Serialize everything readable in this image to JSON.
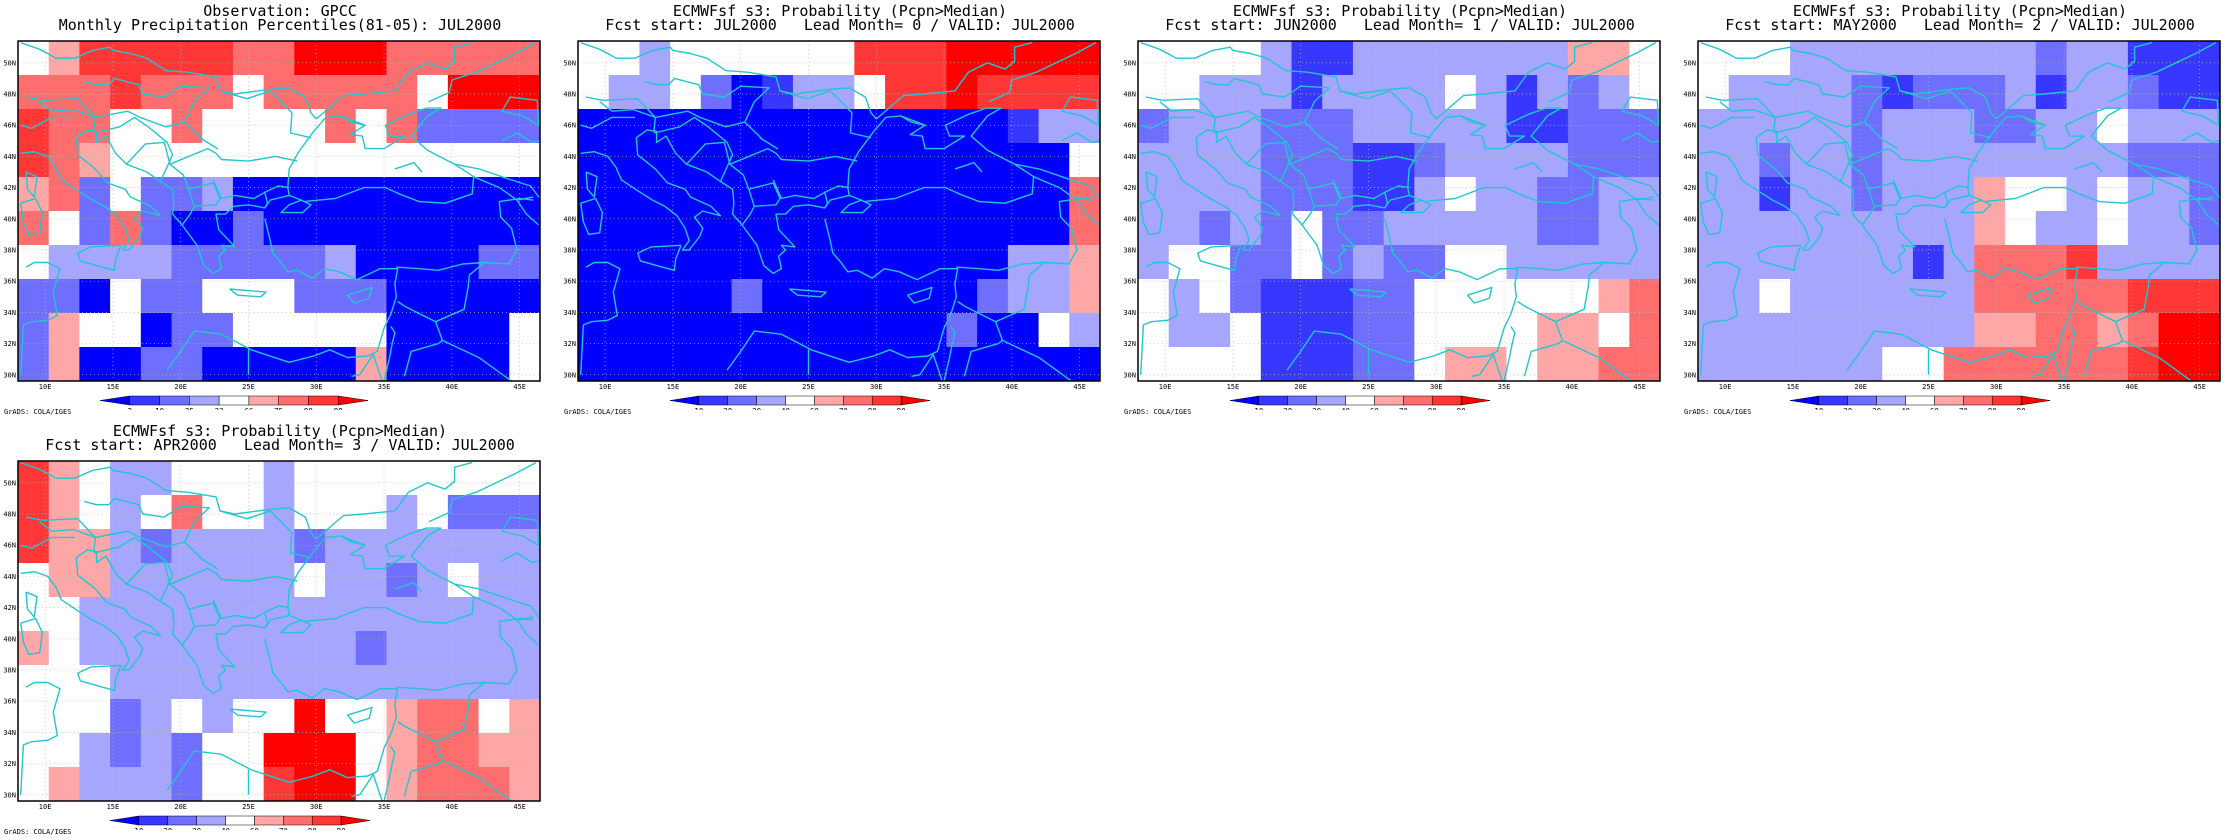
{
  "figure": {
    "panels": [
      {
        "title_line1": "Observation: GPCC",
        "title_line2": "Monthly Precipitation Percentiles(81-05): JUL2000",
        "colorbar_labels": [
          "2",
          "10",
          "25",
          "33",
          "66",
          "75",
          "90",
          "98"
        ]
      },
      {
        "title_line1": "ECMWFsf s3: Probability (Pcpn>Median)",
        "title_line2": "Fcst start: JUL2000   Lead Month= 0 / VALID: JUL2000",
        "colorbar_labels": [
          "10",
          "20",
          "30",
          "40",
          "60",
          "70",
          "80",
          "90"
        ]
      },
      {
        "title_line1": "ECMWFsf s3: Probability (Pcpn>Median)",
        "title_line2": "Fcst start: JUN2000   Lead Month= 1 / VALID: JUL2000",
        "colorbar_labels": [
          "10",
          "20",
          "30",
          "40",
          "60",
          "70",
          "80",
          "90"
        ]
      },
      {
        "title_line1": "ECMWFsf s3: Probability (Pcpn>Median)",
        "title_line2": "Fcst start: MAY2000   Lead Month= 2 / VALID: JUL2000",
        "colorbar_labels": [
          "10",
          "20",
          "30",
          "40",
          "60",
          "70",
          "80",
          "90"
        ]
      },
      {
        "title_line1": "ECMWFsf s3: Probability (Pcpn>Median)",
        "title_line2": "Fcst start: APR2000   Lead Month= 3 / VALID: JUL2000",
        "colorbar_labels": [
          "10",
          "20",
          "30",
          "40",
          "60",
          "70",
          "80",
          "90"
        ]
      }
    ],
    "x_ticks": [
      "10E",
      "15E",
      "20E",
      "25E",
      "30E",
      "35E",
      "40E",
      "45E"
    ],
    "y_ticks": [
      "30N",
      "32N",
      "34N",
      "36N",
      "38N",
      "40N",
      "42N",
      "44N",
      "46N",
      "48N",
      "50N"
    ],
    "credit": "GrADS: COLA/IGES",
    "colors": {
      "frame": "#000000",
      "coastline": "#22c6d0",
      "grid": "#bbbbbb",
      "palette": [
        "#0000ff",
        "#3737ff",
        "#6e6eff",
        "#a6a6ff",
        "#ffffff",
        "#ffa6a6",
        "#ff6e6e",
        "#ff3737",
        "#ff0000"
      ]
    }
  }
}
